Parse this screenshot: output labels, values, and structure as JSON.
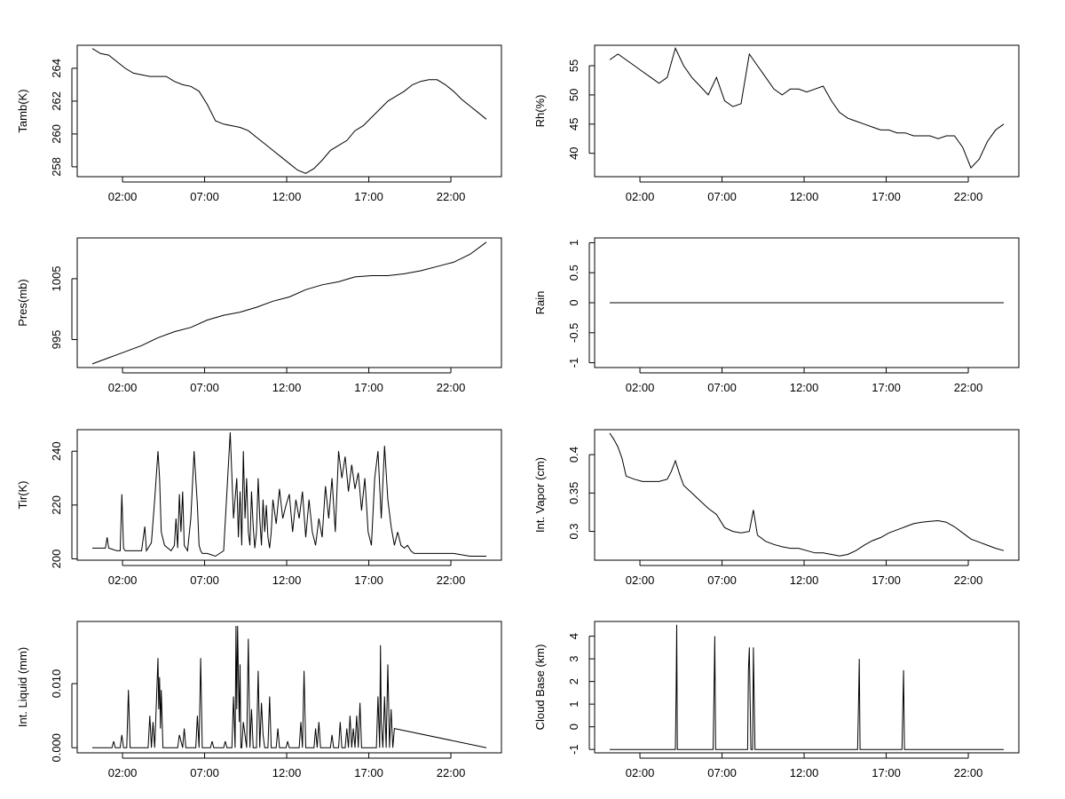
{
  "figure": {
    "hour_ticks": [
      "02:00",
      "07:00",
      "12:00",
      "17:00",
      "22:00"
    ]
  },
  "chart_data": [
    {
      "type": "line",
      "ylabel": "Tamb(K)",
      "xlabel": "",
      "title": "",
      "x_range_hours": [
        0,
        24
      ],
      "x_ticks": [
        "02:00",
        "07:00",
        "12:00",
        "17:00",
        "22:00"
      ],
      "ylim": [
        257.4,
        265.4
      ],
      "y_ticks": [
        258,
        260,
        262,
        264
      ],
      "grid": false,
      "series": [
        {
          "x": [
            0.0,
            0.5,
            1.0,
            1.5,
            2.0,
            2.5,
            3.0,
            3.5,
            4.0,
            4.5,
            5.0,
            5.5,
            6.0,
            6.5,
            7.0,
            7.5,
            8.0,
            8.5,
            9.0,
            9.5,
            10.0,
            10.5,
            11.0,
            11.5,
            12.0,
            12.5,
            13.0,
            13.5,
            14.0,
            14.5,
            15.0,
            15.5,
            16.0,
            16.5,
            17.0,
            17.5,
            18.0,
            18.5,
            19.0,
            19.5,
            20.0,
            20.5,
            21.0,
            21.5,
            22.0,
            22.5,
            23.0,
            23.5,
            24.0
          ],
          "values": [
            265.2,
            264.9,
            264.8,
            264.4,
            264.0,
            263.7,
            263.6,
            263.5,
            263.5,
            263.5,
            263.2,
            263.0,
            262.9,
            262.6,
            261.8,
            260.8,
            260.6,
            260.5,
            260.4,
            260.2,
            259.8,
            259.4,
            259.0,
            258.6,
            258.2,
            257.8,
            257.6,
            257.9,
            258.4,
            259.0,
            259.3,
            259.6,
            260.2,
            260.5,
            261.0,
            261.5,
            262.0,
            262.3,
            262.6,
            263.0,
            263.2,
            263.3,
            263.3,
            263.0,
            262.6,
            262.1,
            261.7,
            261.3,
            260.9
          ]
        }
      ]
    },
    {
      "type": "line",
      "ylabel": "Rh(%)",
      "xlabel": "",
      "title": "",
      "x_range_hours": [
        0,
        24
      ],
      "x_ticks": [
        "02:00",
        "07:00",
        "12:00",
        "17:00",
        "22:00"
      ],
      "ylim": [
        36.0,
        58.5
      ],
      "y_ticks": [
        40,
        45,
        50,
        55
      ],
      "grid": false,
      "series": [
        {
          "x": [
            0.0,
            0.5,
            1.0,
            1.5,
            2.0,
            2.5,
            3.0,
            3.5,
            4.0,
            4.5,
            5.0,
            5.5,
            6.0,
            6.5,
            7.0,
            7.5,
            8.0,
            8.5,
            9.0,
            9.5,
            10.0,
            10.5,
            11.0,
            11.5,
            12.0,
            12.5,
            13.0,
            13.5,
            14.0,
            14.5,
            15.0,
            15.5,
            16.0,
            16.5,
            17.0,
            17.5,
            18.0,
            18.5,
            19.0,
            19.5,
            20.0,
            20.5,
            21.0,
            21.5,
            22.0,
            22.5,
            23.0,
            23.5,
            24.0
          ],
          "values": [
            56.0,
            57.0,
            56.0,
            55.0,
            54.0,
            53.0,
            52.0,
            53.0,
            58.0,
            55.0,
            53.0,
            51.5,
            50.0,
            53.0,
            49.0,
            48.0,
            48.5,
            57.0,
            55.0,
            53.0,
            51.0,
            50.0,
            51.0,
            51.0,
            50.5,
            51.0,
            51.5,
            49.0,
            47.0,
            46.0,
            45.5,
            45.0,
            44.5,
            44.0,
            44.0,
            43.5,
            43.5,
            43.0,
            43.0,
            43.0,
            42.5,
            43.0,
            43.0,
            41.0,
            37.5,
            39.0,
            42.0,
            44.0,
            45.0
          ]
        }
      ]
    },
    {
      "type": "line",
      "ylabel": "Pres(mb)",
      "xlabel": "",
      "title": "",
      "x_range_hours": [
        0,
        24
      ],
      "x_ticks": [
        "02:00",
        "07:00",
        "12:00",
        "17:00",
        "22:00"
      ],
      "ylim": [
        990.4,
        1011.7
      ],
      "y_ticks": [
        995,
        1005
      ],
      "grid": false,
      "series": [
        {
          "x": [
            0.0,
            1.0,
            2.0,
            3.0,
            4.0,
            5.0,
            6.0,
            7.0,
            8.0,
            9.0,
            10.0,
            11.0,
            12.0,
            13.0,
            14.0,
            15.0,
            16.0,
            17.0,
            18.0,
            19.0,
            20.0,
            21.0,
            22.0,
            23.0,
            24.0
          ],
          "values": [
            991.0,
            992.0,
            993.0,
            994.0,
            995.3,
            996.3,
            997.0,
            998.2,
            999.0,
            999.5,
            1000.3,
            1001.3,
            1002.0,
            1003.2,
            1004.0,
            1004.5,
            1005.3,
            1005.5,
            1005.5,
            1005.8,
            1006.3,
            1007.0,
            1007.7,
            1009.0,
            1011.0
          ]
        }
      ]
    },
    {
      "type": "line",
      "ylabel": "Rain",
      "xlabel": "",
      "title": "",
      "x_range_hours": [
        0,
        24
      ],
      "x_ticks": [
        "02:00",
        "07:00",
        "12:00",
        "17:00",
        "22:00"
      ],
      "ylim": [
        -1.08,
        1.08
      ],
      "y_ticks": [
        -1.0,
        -0.5,
        0.0,
        0.5,
        1.0
      ],
      "grid": false,
      "series": [
        {
          "x": [
            0.0,
            24.0
          ],
          "values": [
            0.0,
            0.0
          ]
        }
      ]
    },
    {
      "type": "line",
      "ylabel": "Tir(K)",
      "xlabel": "",
      "title": "",
      "x_range_hours": [
        0,
        24
      ],
      "x_ticks": [
        "02:00",
        "07:00",
        "12:00",
        "17:00",
        "22:00"
      ],
      "ylim": [
        199.5,
        248.0
      ],
      "y_ticks": [
        200,
        220,
        240
      ],
      "grid": false,
      "series": [
        {
          "x": [
            0.0,
            0.8,
            0.9,
            1.0,
            1.5,
            1.7,
            1.8,
            1.9,
            2.0,
            2.5,
            3.0,
            3.2,
            3.3,
            3.4,
            3.6,
            3.8,
            4.0,
            4.1,
            4.2,
            4.4,
            4.6,
            4.8,
            5.0,
            5.1,
            5.2,
            5.3,
            5.4,
            5.5,
            5.6,
            5.7,
            5.8,
            6.0,
            6.2,
            6.4,
            6.5,
            6.6,
            6.7,
            6.8,
            7.0,
            7.5,
            8.0,
            8.2,
            8.4,
            8.6,
            8.8,
            8.9,
            9.0,
            9.1,
            9.2,
            9.3,
            9.4,
            9.5,
            9.6,
            9.7,
            9.8,
            9.9,
            10.0,
            10.1,
            10.2,
            10.3,
            10.4,
            10.5,
            10.6,
            10.7,
            10.8,
            10.9,
            11.0,
            11.2,
            11.4,
            11.6,
            11.8,
            12.0,
            12.2,
            12.4,
            12.6,
            12.8,
            13.0,
            13.2,
            13.4,
            13.6,
            13.8,
            14.0,
            14.2,
            14.4,
            14.6,
            14.8,
            15.0,
            15.2,
            15.4,
            15.6,
            15.8,
            16.0,
            16.2,
            16.4,
            16.6,
            16.8,
            17.0,
            17.2,
            17.4,
            17.6,
            17.8,
            18.0,
            18.2,
            18.4,
            18.6,
            18.8,
            19.0,
            19.2,
            19.4,
            19.6,
            20.0,
            21.0,
            22.0,
            23.0,
            24.0
          ],
          "values": [
            204,
            204,
            208,
            204,
            203,
            203,
            224,
            204,
            203,
            203,
            203,
            212,
            203,
            204,
            206,
            222,
            240,
            230,
            210,
            205,
            204,
            203,
            205,
            215,
            204,
            224,
            210,
            225,
            205,
            204,
            203,
            215,
            240,
            220,
            205,
            203,
            202,
            202,
            202,
            201,
            203,
            225,
            247,
            215,
            230,
            208,
            225,
            205,
            240,
            215,
            230,
            210,
            205,
            225,
            212,
            204,
            210,
            230,
            215,
            205,
            222,
            210,
            220,
            208,
            204,
            210,
            222,
            213,
            226,
            215,
            220,
            224,
            210,
            222,
            215,
            225,
            208,
            222,
            210,
            205,
            215,
            208,
            227,
            215,
            230,
            210,
            240,
            230,
            238,
            225,
            235,
            226,
            232,
            218,
            230,
            210,
            205,
            230,
            240,
            215,
            242,
            222,
            212,
            205,
            210,
            205,
            204,
            205,
            203,
            202,
            202,
            202,
            202,
            201,
            201
          ]
        }
      ]
    },
    {
      "type": "line",
      "ylabel": "Int. Vapor (cm)",
      "xlabel": "",
      "title": "",
      "x_range_hours": [
        0,
        24
      ],
      "x_ticks": [
        "02:00",
        "07:00",
        "12:00",
        "17:00",
        "22:00"
      ],
      "ylim": [
        0.2625,
        0.4325
      ],
      "y_ticks": [
        0.3,
        0.35,
        0.4
      ],
      "grid": false,
      "series": [
        {
          "x": [
            0.0,
            0.25,
            0.5,
            0.75,
            1.0,
            1.5,
            2.0,
            2.5,
            3.0,
            3.5,
            3.75,
            4.0,
            4.25,
            4.5,
            5.0,
            5.5,
            6.0,
            6.5,
            7.0,
            7.5,
            8.0,
            8.5,
            8.75,
            9.0,
            9.5,
            10.0,
            10.5,
            11.0,
            11.5,
            12.0,
            12.5,
            13.0,
            13.5,
            14.0,
            14.5,
            15.0,
            15.5,
            16.0,
            16.5,
            17.0,
            17.5,
            18.0,
            18.5,
            19.0,
            19.5,
            20.0,
            20.5,
            21.0,
            21.5,
            22.0,
            22.5,
            23.0,
            23.5,
            24.0
          ],
          "values": [
            0.428,
            0.42,
            0.41,
            0.395,
            0.372,
            0.368,
            0.365,
            0.365,
            0.365,
            0.368,
            0.378,
            0.392,
            0.375,
            0.36,
            0.35,
            0.34,
            0.33,
            0.322,
            0.305,
            0.3,
            0.298,
            0.3,
            0.328,
            0.295,
            0.287,
            0.283,
            0.28,
            0.278,
            0.278,
            0.275,
            0.272,
            0.272,
            0.27,
            0.268,
            0.27,
            0.275,
            0.282,
            0.288,
            0.292,
            0.298,
            0.302,
            0.306,
            0.31,
            0.312,
            0.313,
            0.314,
            0.312,
            0.306,
            0.298,
            0.29,
            0.286,
            0.282,
            0.278,
            0.275
          ]
        }
      ]
    },
    {
      "type": "line",
      "ylabel": "Int. Liquid (mm)",
      "xlabel": "",
      "title": "",
      "x_range_hours": [
        0,
        24
      ],
      "x_ticks": [
        "02:00",
        "07:00",
        "12:00",
        "17:00",
        "22:00"
      ],
      "ylim": [
        -0.0008,
        0.0197
      ],
      "y_ticks": [
        0.0,
        0.01
      ],
      "y_tick_labels": [
        "0.000",
        "0.010"
      ],
      "grid": false,
      "series": [
        {
          "x": [
            0.0,
            1.2,
            1.3,
            1.4,
            1.7,
            1.8,
            1.9,
            2.1,
            2.2,
            2.3,
            3.4,
            3.5,
            3.6,
            3.7,
            3.8,
            3.9,
            4.0,
            4.05,
            4.1,
            4.15,
            4.2,
            4.3,
            5.2,
            5.3,
            5.5,
            5.6,
            5.7,
            6.3,
            6.4,
            6.5,
            6.6,
            6.7,
            6.8,
            7.2,
            7.3,
            7.4,
            8.0,
            8.1,
            8.2,
            8.5,
            8.6,
            8.7,
            8.75,
            8.8,
            8.85,
            8.9,
            8.95,
            9.0,
            9.05,
            9.1,
            9.2,
            9.4,
            9.5,
            9.6,
            9.7,
            9.8,
            10.0,
            10.1,
            10.2,
            10.3,
            10.4,
            10.5,
            10.7,
            10.8,
            10.9,
            11.2,
            11.3,
            11.4,
            11.8,
            11.9,
            12.0,
            12.6,
            12.7,
            12.8,
            12.9,
            13.0,
            13.5,
            13.6,
            13.7,
            13.8,
            13.9,
            14.5,
            14.6,
            14.7,
            15.0,
            15.1,
            15.2,
            15.4,
            15.5,
            15.6,
            15.7,
            15.8,
            15.9,
            16.0,
            16.1,
            16.2,
            16.3,
            16.4,
            16.5,
            17.3,
            17.4,
            17.5,
            17.55,
            17.6,
            17.7,
            17.8,
            17.9,
            18.0,
            18.1,
            18.2,
            18.3,
            18.4,
            24.0
          ],
          "values": [
            0.0,
            0.0,
            0.001,
            0.0,
            0.0,
            0.002,
            0.0,
            0.0,
            0.009,
            0.0,
            0.0,
            0.005,
            0.0,
            0.004,
            0.0,
            0.007,
            0.014,
            0.006,
            0.011,
            0.003,
            0.009,
            0.0,
            0.0,
            0.002,
            0.0,
            0.003,
            0.0,
            0.0,
            0.005,
            0.0,
            0.014,
            0.0,
            0.0,
            0.0,
            0.001,
            0.0,
            0.0,
            0.001,
            0.0,
            0.0,
            0.008,
            0.0,
            0.019,
            0.006,
            0.019,
            0.011,
            0.004,
            0.013,
            0.0,
            0.0,
            0.004,
            0.0,
            0.017,
            0.0,
            0.006,
            0.0,
            0.0,
            0.012,
            0.0,
            0.007,
            0.002,
            0.0,
            0.0,
            0.008,
            0.0,
            0.0,
            0.003,
            0.0,
            0.0,
            0.001,
            0.0,
            0.0,
            0.004,
            0.0,
            0.012,
            0.0,
            0.0,
            0.003,
            0.0,
            0.004,
            0.0,
            0.0,
            0.002,
            0.0,
            0.0,
            0.004,
            0.0,
            0.0,
            0.003,
            0.0,
            0.005,
            0.0,
            0.003,
            0.0,
            0.005,
            0.0,
            0.007,
            0.0,
            0.0,
            0.0,
            0.008,
            0.0,
            0.016,
            0.004,
            0.0,
            0.008,
            0.0,
            0.013,
            0.0,
            0.006,
            0.0,
            0.003,
            0.0
          ]
        }
      ]
    },
    {
      "type": "line",
      "ylabel": "Cloud Base (km)",
      "xlabel": "",
      "title": "",
      "x_range_hours": [
        0,
        24
      ],
      "x_ticks": [
        "02:00",
        "07:00",
        "12:00",
        "17:00",
        "22:00"
      ],
      "ylim": [
        -1.15,
        4.65
      ],
      "y_ticks": [
        -1,
        0,
        1,
        2,
        3,
        4
      ],
      "grid": false,
      "series": [
        {
          "x": [
            0.0,
            4.0,
            4.05,
            4.08,
            4.12,
            6.3,
            6.35,
            6.4,
            6.45,
            8.4,
            8.45,
            8.5,
            8.55,
            8.6,
            8.7,
            8.75,
            8.8,
            8.85,
            15.1,
            15.15,
            15.2,
            15.25,
            17.8,
            17.85,
            17.9,
            17.95,
            24.0
          ],
          "values": [
            -1,
            -1,
            1.8,
            4.5,
            -1,
            -1,
            1.5,
            4.0,
            -1,
            -1,
            2.5,
            3.5,
            1.2,
            -1,
            -1,
            3.5,
            1.2,
            -1,
            -1,
            0.9,
            3.0,
            -1,
            -1,
            0.7,
            2.5,
            -1,
            -1
          ]
        }
      ]
    }
  ]
}
